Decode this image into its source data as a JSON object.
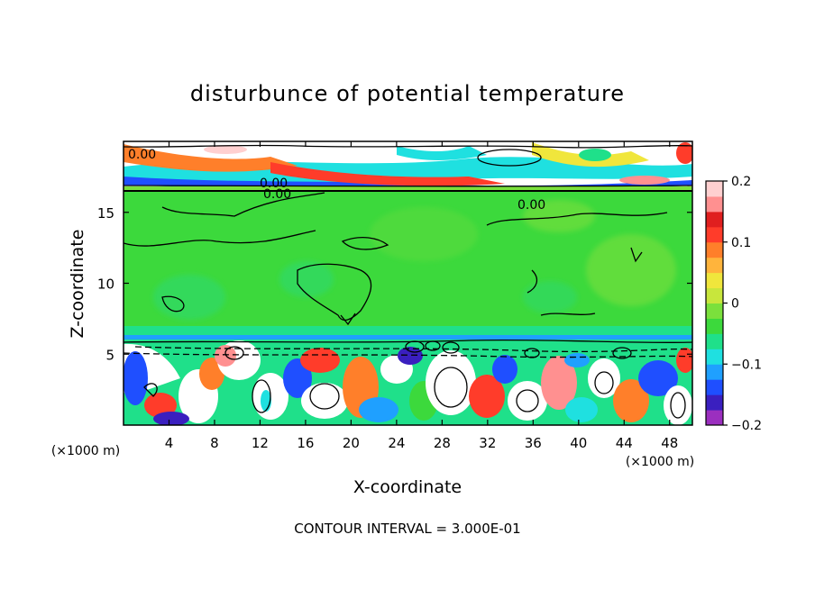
{
  "chart_data": {
    "type": "heatmap",
    "title": "disturbunce of potential temperature",
    "xlabel": "X-coordinate",
    "ylabel": "Z-coordinate",
    "x_unit": "(×1000 m)",
    "y_unit": "(×1000 m)",
    "xlim": [
      0,
      50
    ],
    "ylim": [
      0,
      20
    ],
    "x_ticks": [
      4,
      8,
      12,
      16,
      20,
      24,
      28,
      32,
      36,
      40,
      44,
      48
    ],
    "y_ticks": [
      5,
      10,
      15
    ],
    "colorbar": {
      "min": -0.2,
      "max": 0.2,
      "tick_values": [
        0.2,
        0.1,
        0,
        -0.1,
        -0.2
      ],
      "tick_labels": [
        "0.2",
        "0.1",
        "0",
        "−0.1",
        "−0.2"
      ],
      "colors": [
        "#9b2fbf",
        "#3a1fbf",
        "#1f4fff",
        "#1fa0ff",
        "#1fe0e0",
        "#1fe08a",
        "#3cd93c",
        "#7be03c",
        "#c8e63c",
        "#f0e63c",
        "#ffb43c",
        "#ff7f2a",
        "#ff3c2a",
        "#e01f1f",
        "#ff9090",
        "#ffd0d0"
      ]
    },
    "contour_labels": [
      "0.00",
      "0.00",
      "0.00",
      "0.00"
    ],
    "contour_interval_text": "CONTOUR INTERVAL = 3.000E-01"
  }
}
